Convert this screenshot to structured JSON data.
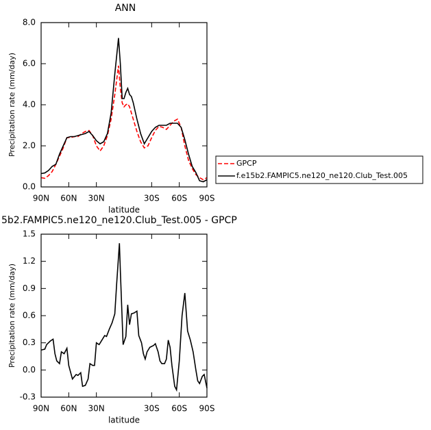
{
  "chart_data": [
    {
      "type": "line",
      "title": "ANN",
      "xlabel": "latitude",
      "ylabel": "Precipitation rate (mm/day)",
      "x": [
        90,
        86,
        82,
        78,
        74,
        70,
        66,
        62,
        58,
        54,
        50,
        46,
        42,
        38,
        34,
        30,
        26,
        22,
        18,
        14,
        10,
        6,
        4,
        2,
        0,
        -2,
        -4,
        -6,
        -8,
        -10,
        -14,
        -18,
        -22,
        -26,
        -30,
        -34,
        -38,
        -42,
        -46,
        -50,
        -54,
        -58,
        -62,
        -66,
        -70,
        -74,
        -78,
        -82,
        -86,
        -90
      ],
      "series": [
        {
          "name": "GPCP",
          "color": "#ff0000",
          "line_style": "dashed",
          "values": [
            0.45,
            0.42,
            0.55,
            0.75,
            1.1,
            1.5,
            1.9,
            2.4,
            2.4,
            2.45,
            2.45,
            2.6,
            2.7,
            2.75,
            2.5,
            2.0,
            1.75,
            2.0,
            2.5,
            3.3,
            4.5,
            5.9,
            4.8,
            4.1,
            3.9,
            4.0,
            4.05,
            3.9,
            3.6,
            3.3,
            2.7,
            2.2,
            1.9,
            2.0,
            2.4,
            2.75,
            2.95,
            2.9,
            2.8,
            3.0,
            3.2,
            3.3,
            2.9,
            2.0,
            1.3,
            0.9,
            0.6,
            0.45,
            0.35,
            0.45
          ]
        },
        {
          "name": "f.e15b2.FAMPIC5.ne120_ne120.Club_Test.005",
          "color": "#000000",
          "line_style": "solid",
          "values": [
            0.65,
            0.68,
            0.8,
            1.0,
            1.1,
            1.6,
            2.0,
            2.4,
            2.45,
            2.45,
            2.5,
            2.55,
            2.6,
            2.7,
            2.5,
            2.25,
            2.1,
            2.2,
            2.6,
            3.6,
            5.5,
            7.25,
            6.0,
            4.3,
            4.3,
            4.6,
            4.8,
            4.5,
            4.4,
            4.1,
            3.3,
            2.6,
            2.1,
            2.4,
            2.7,
            2.9,
            3.0,
            3.0,
            3.0,
            3.1,
            3.1,
            3.1,
            2.9,
            2.3,
            1.6,
            1.0,
            0.7,
            0.3,
            0.25,
            0.35
          ]
        }
      ],
      "xlim": [
        90,
        -90
      ],
      "xticks": [
        {
          "value": 90,
          "label": "90N"
        },
        {
          "value": 60,
          "label": "60N"
        },
        {
          "value": 30,
          "label": "30N"
        },
        {
          "value": -30,
          "label": "30S"
        },
        {
          "value": -60,
          "label": "60S"
        },
        {
          "value": -90,
          "label": "90S"
        }
      ],
      "ylim": [
        0,
        8
      ],
      "yticks": [
        {
          "value": 0,
          "label": "0.0"
        },
        {
          "value": 2,
          "label": "2.0"
        },
        {
          "value": 4,
          "label": "4.0"
        },
        {
          "value": 6,
          "label": "6.0"
        },
        {
          "value": 8,
          "label": "8.0"
        }
      ],
      "legend": "right"
    },
    {
      "type": "line",
      "title": "5b2.FAMPIC5.ne120_ne120.Club_Test.005 - GPCP",
      "xlabel": "latitude",
      "ylabel": "Precipitation rate (mm/day)",
      "x": [
        90,
        86,
        84,
        80,
        77,
        75,
        73,
        70,
        68,
        65,
        62,
        60,
        56,
        52,
        50,
        47,
        45,
        42,
        39,
        37,
        34,
        32,
        30,
        27,
        24,
        21,
        19,
        16,
        13,
        10,
        8,
        5,
        4,
        1,
        -2,
        -4,
        -6,
        -8,
        -11,
        -14,
        -16,
        -19,
        -21,
        -23,
        -25,
        -28,
        -32,
        -34,
        -37,
        -39,
        -41,
        -44,
        -46,
        -48,
        -50,
        -52,
        -55,
        -57,
        -60,
        -63,
        -66,
        -69,
        -72,
        -75,
        -78,
        -80,
        -82,
        -85,
        -87,
        -90
      ],
      "series": [
        {
          "color": "#000000",
          "line_style": "solid",
          "values": [
            0.22,
            0.23,
            0.28,
            0.32,
            0.34,
            0.18,
            0.1,
            0.07,
            0.2,
            0.18,
            0.24,
            0.05,
            -0.1,
            -0.05,
            -0.06,
            -0.03,
            -0.18,
            -0.17,
            -0.1,
            0.07,
            0.05,
            0.05,
            0.3,
            0.28,
            0.33,
            0.38,
            0.37,
            0.45,
            0.52,
            0.62,
            0.95,
            1.4,
            1.1,
            0.28,
            0.37,
            0.72,
            0.5,
            0.62,
            0.63,
            0.65,
            0.38,
            0.3,
            0.18,
            0.12,
            0.2,
            0.25,
            0.27,
            0.29,
            0.2,
            0.1,
            0.07,
            0.07,
            0.12,
            0.33,
            0.25,
            0.05,
            -0.18,
            -0.22,
            0.1,
            0.6,
            0.85,
            0.43,
            0.33,
            0.2,
            0.0,
            -0.12,
            -0.15,
            -0.07,
            -0.05,
            -0.2
          ]
        }
      ],
      "xlim": [
        90,
        -90
      ],
      "xticks": [
        {
          "value": 90,
          "label": "90N"
        },
        {
          "value": 60,
          "label": "60N"
        },
        {
          "value": 30,
          "label": "30N"
        },
        {
          "value": -30,
          "label": "30S"
        },
        {
          "value": -60,
          "label": "60S"
        },
        {
          "value": -90,
          "label": "90S"
        }
      ],
      "ylim": [
        -0.3,
        1.5
      ],
      "yticks": [
        {
          "value": -0.3,
          "label": "-0.3"
        },
        {
          "value": 0,
          "label": "0.0"
        },
        {
          "value": 0.3,
          "label": "0.3"
        },
        {
          "value": 0.6,
          "label": "0.6"
        },
        {
          "value": 0.9,
          "label": "0.9"
        },
        {
          "value": 1.2,
          "label": "1.2"
        },
        {
          "value": 1.5,
          "label": "1.5"
        }
      ]
    }
  ]
}
